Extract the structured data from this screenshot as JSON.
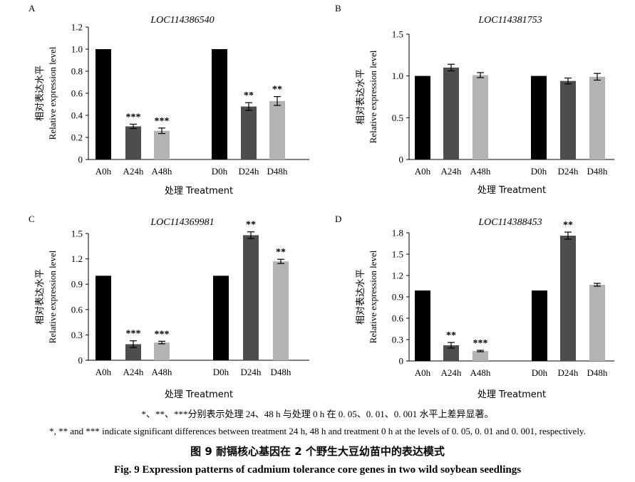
{
  "chart_data": [
    {
      "panel": "A",
      "type": "bar",
      "title": "LOC114386540",
      "ylabel_zh": "相对表达水平",
      "ylabel": "Relative expression level",
      "xlabel": "处理  Treatment",
      "categories": [
        "A0h",
        "A24h",
        "A48h",
        "D0h",
        "D24h",
        "D48h"
      ],
      "values": [
        1.0,
        0.3,
        0.26,
        1.0,
        0.48,
        0.53
      ],
      "errors": [
        0.0,
        0.02,
        0.025,
        0.0,
        0.035,
        0.04
      ],
      "significance": [
        "",
        "***",
        "***",
        "",
        "**",
        "**"
      ],
      "colors": [
        "#000000",
        "#4d4d4d",
        "#b3b3b3",
        "#000000",
        "#4d4d4d",
        "#b3b3b3"
      ],
      "yticks": [
        "0",
        "0.2",
        "0.4",
        "0.6",
        "0.8",
        "1.0",
        "1.2"
      ],
      "ylim": [
        0,
        1.2
      ]
    },
    {
      "panel": "B",
      "type": "bar",
      "title": "LOC114381753",
      "ylabel_zh": "相对表达水平",
      "ylabel": "Relative expression level",
      "xlabel": "处理  Treatment",
      "categories": [
        "A0h",
        "A24h",
        "A48h",
        "D0h",
        "D24h",
        "D48h"
      ],
      "values": [
        1.0,
        1.1,
        1.01,
        1.0,
        0.94,
        0.99
      ],
      "errors": [
        0.0,
        0.04,
        0.03,
        0.0,
        0.035,
        0.04
      ],
      "significance": [
        "",
        "",
        "",
        "",
        "",
        ""
      ],
      "colors": [
        "#000000",
        "#4d4d4d",
        "#b3b3b3",
        "#000000",
        "#4d4d4d",
        "#b3b3b3"
      ],
      "yticks": [
        "0",
        "0.5",
        "1.0",
        "1.5"
      ],
      "ylim": [
        0,
        1.5
      ]
    },
    {
      "panel": "C",
      "type": "bar",
      "title": "LOC114369981",
      "ylabel_zh": "相对表达水平",
      "ylabel": "Relative expression level",
      "xlabel": "处理  Treatment",
      "categories": [
        "A0h",
        "A24h",
        "A48h",
        "D0h",
        "D24h",
        "D48h"
      ],
      "values": [
        1.0,
        0.19,
        0.21,
        1.0,
        1.48,
        1.17
      ],
      "errors": [
        0.0,
        0.04,
        0.015,
        0.0,
        0.04,
        0.025
      ],
      "significance": [
        "",
        "***",
        "***",
        "",
        "**",
        "**"
      ],
      "colors": [
        "#000000",
        "#4d4d4d",
        "#b3b3b3",
        "#000000",
        "#4d4d4d",
        "#b3b3b3"
      ],
      "yticks": [
        "0",
        "0.3",
        "0.6",
        "0.9",
        "1.2",
        "1.5"
      ],
      "ylim": [
        0,
        1.5
      ]
    },
    {
      "panel": "D",
      "type": "bar",
      "title": "LOC114388453",
      "ylabel_zh": "相对表达水平",
      "ylabel": "Relative expression level",
      "xlabel": "处理  Treatment",
      "categories": [
        "A0h",
        "A24h",
        "A48h",
        "D0h",
        "D24h",
        "D48h"
      ],
      "values": [
        0.99,
        0.22,
        0.14,
        0.99,
        1.76,
        1.07
      ],
      "errors": [
        0.0,
        0.04,
        0.01,
        0.0,
        0.05,
        0.02
      ],
      "significance": [
        "",
        "**",
        "***",
        "",
        "**",
        ""
      ],
      "colors": [
        "#000000",
        "#4d4d4d",
        "#b3b3b3",
        "#000000",
        "#4d4d4d",
        "#b3b3b3"
      ],
      "yticks": [
        "0",
        "0.3",
        "0.6",
        "0.9",
        "1.2",
        "1.5",
        "1.8"
      ],
      "ylim": [
        0,
        1.8
      ]
    }
  ],
  "caption": {
    "note_zh": "*、**、***分别表示处理 24、48 h 与处理 0 h 在 0. 05、0. 01、0. 001 水平上差异显著。",
    "note_en": "*, ** and *** indicate significant differences between treatment 24 h, 48 h and treatment 0 h at the levels of 0. 05, 0. 01 and 0. 001, respectively.",
    "title_zh": "图 9    耐镉核心基因在 2 个野生大豆幼苗中的表达模式",
    "title_en": "Fig. 9    Expression patterns of cadmium tolerance core genes in two wild soybean seedlings"
  }
}
